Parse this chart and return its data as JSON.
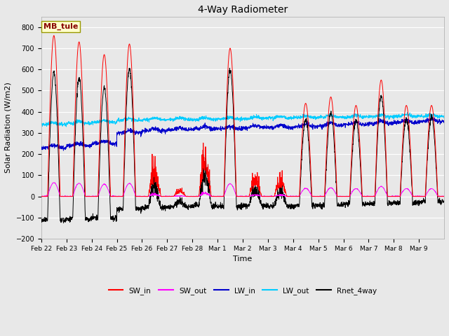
{
  "title": "4-Way Radiometer",
  "xlabel": "Time",
  "ylabel": "Solar Radiation (W/m2)",
  "ylim": [
    -200,
    850
  ],
  "yticks": [
    -200,
    -100,
    0,
    100,
    200,
    300,
    400,
    500,
    600,
    700,
    800
  ],
  "station_label": "MB_tule",
  "colors": {
    "SW_in": "#ff0000",
    "SW_out": "#ff00ff",
    "LW_in": "#0000cc",
    "LW_out": "#00ccff",
    "Rnet_4way": "#000000"
  },
  "bg_color": "#e8e8e8",
  "fig_bg_color": "#e8e8e8",
  "x_tick_labels": [
    "Feb 22",
    "Feb 23",
    "Feb 24",
    "Feb 25",
    "Feb 26",
    "Feb 27",
    "Feb 28",
    "Mar 1",
    "Mar 2",
    "Mar 3",
    "Mar 4",
    "Mar 5",
    "Mar 6",
    "Mar 7",
    "Mar 8",
    "Mar 9"
  ],
  "n_days": 16,
  "peaks_sw_in": [
    760,
    730,
    670,
    720,
    200,
    50,
    300,
    700,
    150,
    130,
    440,
    470,
    430,
    550,
    430,
    430
  ],
  "cloudy_days": [
    0,
    0,
    0,
    0,
    1,
    1,
    1,
    0,
    1,
    1,
    0,
    0,
    0,
    0,
    0,
    0
  ],
  "lw_in_base": [
    230,
    240,
    250,
    300,
    310,
    315,
    320,
    320,
    325,
    325,
    330,
    335,
    340,
    345,
    350,
    355
  ],
  "lw_out_base": [
    340,
    345,
    350,
    360,
    362,
    363,
    364,
    366,
    368,
    370,
    372,
    375,
    375,
    377,
    378,
    378
  ]
}
